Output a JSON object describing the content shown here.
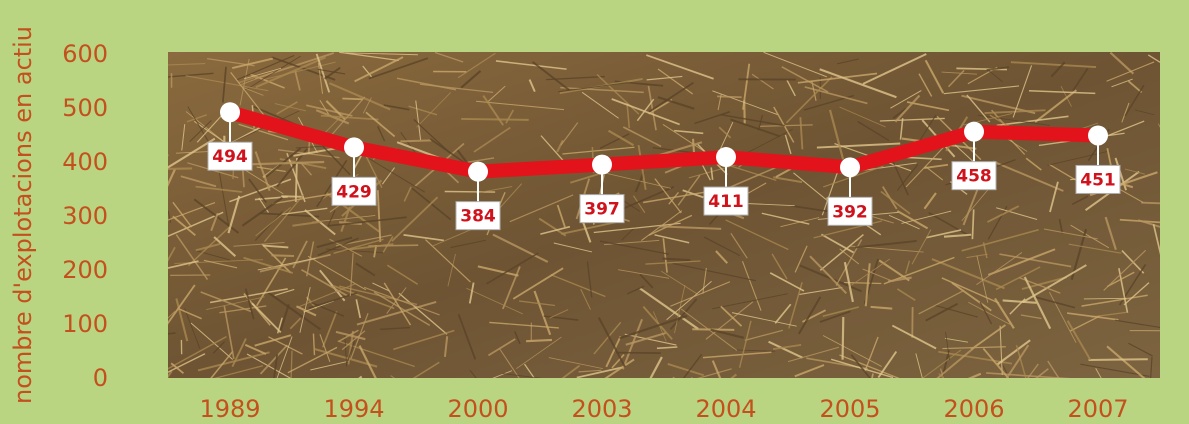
{
  "chart_data": {
    "type": "line",
    "ylabel": "nombre d'explotacions en actiu",
    "categories": [
      "1989",
      "1994",
      "2000",
      "2003",
      "2004",
      "2005",
      "2006",
      "2007"
    ],
    "values": [
      494,
      429,
      384,
      397,
      411,
      392,
      458,
      451
    ],
    "color": "#e3131b",
    "ylim": [
      0,
      600
    ],
    "yticks": [
      0,
      100,
      200,
      300,
      400,
      500,
      600
    ],
    "grid": false
  }
}
